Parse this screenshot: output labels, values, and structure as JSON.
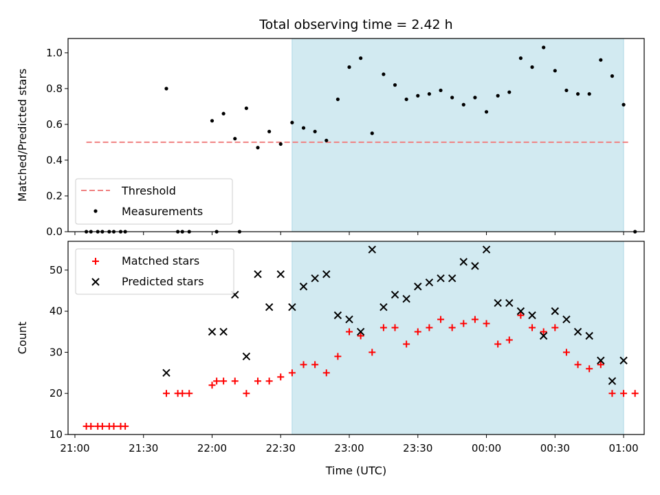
{
  "title": "Total observing time = 2.42 h",
  "xlabel": "Time (UTC)",
  "colors": {
    "threshold": "#f08080",
    "measurements": "#000000",
    "matched": "#ff0000",
    "predicted": "#000000",
    "shade": "#add8e6"
  },
  "x_ticks": [
    "21:00",
    "21:30",
    "22:00",
    "22:30",
    "23:00",
    "23:30",
    "00:00",
    "00:30",
    "01:00"
  ],
  "chart_data": [
    {
      "type": "scatter",
      "ylabel": "Matched/Predicted stars",
      "ylim": [
        0,
        1.08
      ],
      "y_ticks": [
        "0.0",
        "0.2",
        "0.4",
        "0.6",
        "0.8",
        "1.0"
      ],
      "y_tick_values": [
        0,
        0.2,
        0.4,
        0.6,
        0.8,
        1.0
      ],
      "xlim": [
        "20:57",
        "01:09"
      ],
      "shaded_region": [
        "22:35",
        "01:00"
      ],
      "legend_position": "lower left",
      "threshold": {
        "name": "Threshold",
        "value": 0.5,
        "x_range": [
          "21:05",
          "01:02"
        ]
      },
      "series": [
        {
          "name": "Measurements",
          "x": [
            "21:05",
            "21:07",
            "21:10",
            "21:12",
            "21:15",
            "21:17",
            "21:20",
            "21:22",
            "21:40",
            "21:45",
            "21:47",
            "21:50",
            "22:00",
            "22:02",
            "22:05",
            "22:10",
            "22:12",
            "22:15",
            "22:20",
            "22:25",
            "22:30",
            "22:35",
            "22:40",
            "22:45",
            "22:50",
            "22:55",
            "23:00",
            "23:05",
            "23:10",
            "23:15",
            "23:20",
            "23:25",
            "23:30",
            "23:35",
            "23:40",
            "23:45",
            "23:50",
            "23:55",
            "00:00",
            "00:05",
            "00:10",
            "00:15",
            "00:20",
            "00:25",
            "00:30",
            "00:35",
            "00:40",
            "00:45",
            "00:50",
            "00:55",
            "01:00",
            "01:05"
          ],
          "y": [
            0,
            0,
            0,
            0,
            0,
            0,
            0,
            0,
            0.8,
            0,
            0,
            0,
            0.62,
            0,
            0.66,
            0.52,
            0,
            0.69,
            0.47,
            0.56,
            0.49,
            0.61,
            0.58,
            0.56,
            0.51,
            0.74,
            0.92,
            0.97,
            0.55,
            0.88,
            0.82,
            0.74,
            0.76,
            0.77,
            0.79,
            0.75,
            0.71,
            0.75,
            0.67,
            0.76,
            0.78,
            0.97,
            0.92,
            1.03,
            0.9,
            0.79,
            0.77,
            0.77,
            0.96,
            0.87,
            0.71,
            0
          ]
        }
      ]
    },
    {
      "type": "scatter",
      "ylabel": "Count",
      "ylim": [
        10,
        57
      ],
      "y_ticks": [
        "10",
        "20",
        "30",
        "40",
        "50"
      ],
      "y_tick_values": [
        10,
        20,
        30,
        40,
        50
      ],
      "xlim": [
        "20:57",
        "01:09"
      ],
      "shaded_region": [
        "22:35",
        "01:00"
      ],
      "legend_position": "upper left",
      "series": [
        {
          "name": "Matched stars",
          "x": [
            "21:05",
            "21:07",
            "21:10",
            "21:12",
            "21:15",
            "21:17",
            "21:20",
            "21:22",
            "21:40",
            "21:45",
            "21:47",
            "21:50",
            "22:00",
            "22:02",
            "22:05",
            "22:10",
            "22:15",
            "22:20",
            "22:25",
            "22:30",
            "22:35",
            "22:40",
            "22:45",
            "22:50",
            "22:55",
            "23:00",
            "23:05",
            "23:10",
            "23:15",
            "23:20",
            "23:25",
            "23:30",
            "23:35",
            "23:40",
            "23:45",
            "23:50",
            "23:55",
            "00:00",
            "00:05",
            "00:10",
            "00:15",
            "00:20",
            "00:25",
            "00:30",
            "00:35",
            "00:40",
            "00:45",
            "00:50",
            "00:55",
            "01:00",
            "01:05"
          ],
          "y": [
            12,
            12,
            12,
            12,
            12,
            12,
            12,
            12,
            20,
            20,
            20,
            20,
            22,
            23,
            23,
            23,
            20,
            23,
            23,
            24,
            25,
            27,
            27,
            25,
            29,
            35,
            34,
            30,
            36,
            36,
            32,
            35,
            36,
            38,
            36,
            37,
            38,
            37,
            32,
            33,
            39,
            36,
            35,
            36,
            30,
            27,
            26,
            27,
            20,
            20,
            20
          ]
        },
        {
          "name": "Predicted stars",
          "x": [
            "21:40",
            "22:00",
            "22:05",
            "22:10",
            "22:15",
            "22:20",
            "22:25",
            "22:30",
            "22:35",
            "22:40",
            "22:45",
            "22:50",
            "22:55",
            "23:00",
            "23:05",
            "23:10",
            "23:15",
            "23:20",
            "23:25",
            "23:30",
            "23:35",
            "23:40",
            "23:45",
            "23:50",
            "23:55",
            "00:00",
            "00:05",
            "00:10",
            "00:15",
            "00:20",
            "00:25",
            "00:30",
            "00:35",
            "00:40",
            "00:45",
            "00:50",
            "00:55",
            "01:00"
          ],
          "y": [
            25,
            35,
            35,
            44,
            29,
            49,
            41,
            49,
            41,
            46,
            48,
            49,
            39,
            38,
            35,
            55,
            41,
            44,
            43,
            46,
            47,
            48,
            48,
            52,
            51,
            55,
            42,
            42,
            40,
            39,
            34,
            40,
            38,
            35,
            34,
            28,
            23,
            28
          ]
        }
      ]
    }
  ]
}
